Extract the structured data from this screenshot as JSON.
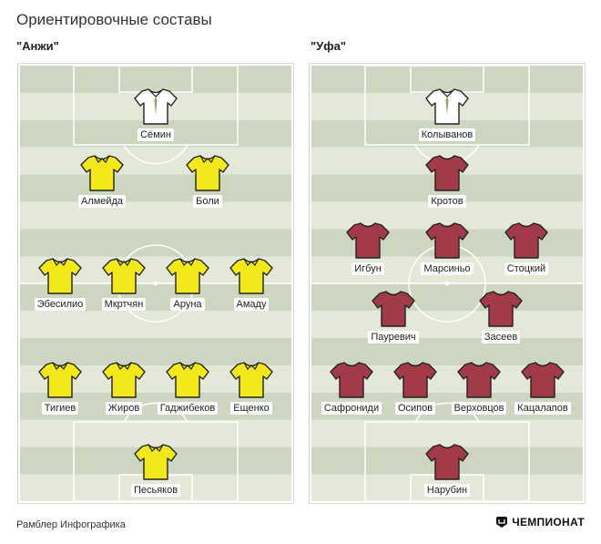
{
  "title": "Ориентировочные составы",
  "colors": {
    "yellow_shirt": "#f2e81a",
    "claret_shirt": "#a33a4a",
    "gk_shirt": "#ffffff",
    "pitch_dark": "#cdd6c1",
    "pitch_light": "#e3e8d9"
  },
  "teams": [
    {
      "name": "\"Анжи\"",
      "shirt_color": "yellow",
      "goalkeeper_top": {
        "name": "Сёмин",
        "shirt": "white"
      },
      "rows": [
        [
          "Алмейда",
          "Боли"
        ],
        [
          "Эбесилио",
          "Мкртчян",
          "Аруна",
          "Амаду"
        ],
        [
          "Тигиев",
          "Жиров",
          "Гаджибеков",
          "Ещенко"
        ]
      ],
      "goalkeeper_bottom": {
        "name": "Песьяков",
        "shirt": "yellow"
      }
    },
    {
      "name": "\"Уфа\"",
      "shirt_color": "claret",
      "goalkeeper_top": {
        "name": "Колыванов",
        "shirt": "white"
      },
      "rows": [
        [
          "Кротов"
        ],
        [
          "Игбун",
          "Марсиньо",
          "Стоцкий"
        ],
        [
          "Пауревич",
          "Засеев"
        ],
        [
          "Сафрониди",
          "Осипов",
          "Верховцов",
          "Кацалапов"
        ]
      ],
      "goalkeeper_bottom": {
        "name": "Нарубин",
        "shirt": "claret"
      }
    }
  ],
  "footer": {
    "credit": "Рамблер Инфографика",
    "brand": "ЧЕМПИОНАТ",
    "brand_icon": "championat-logo-icon"
  }
}
